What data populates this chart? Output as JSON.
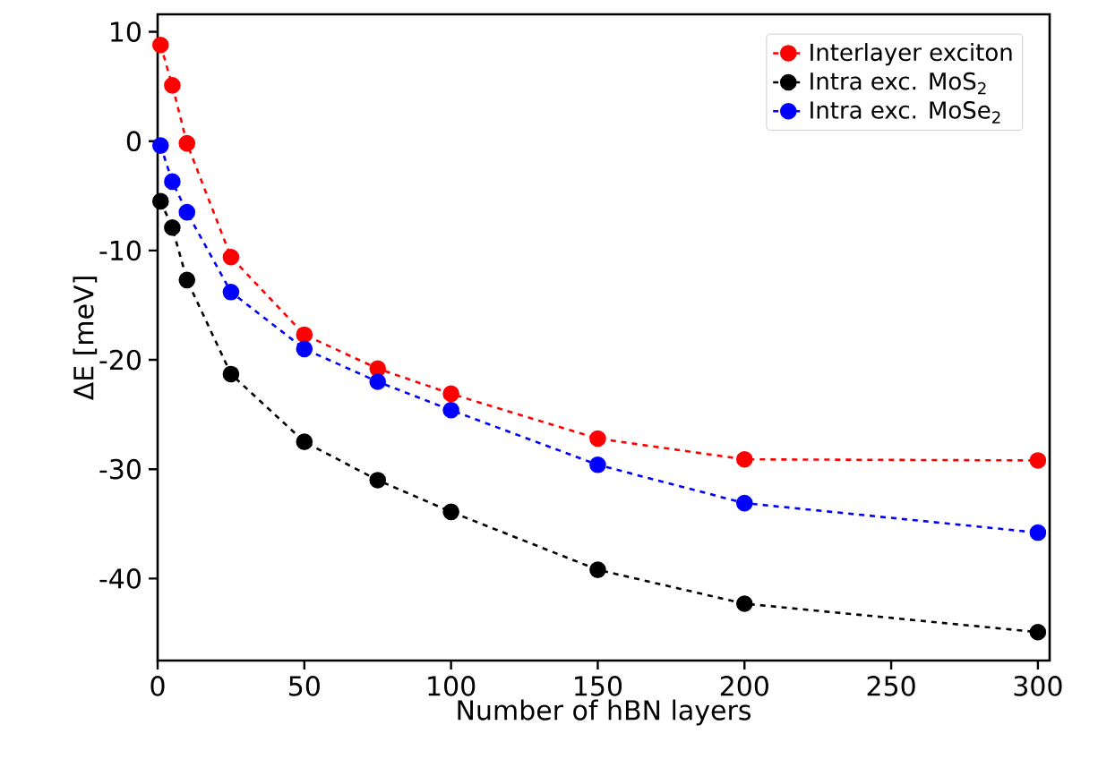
{
  "chart_data": {
    "type": "line",
    "xlabel": "Number of hBN layers",
    "ylabel": "ΔE [meV]",
    "x": [
      1,
      5,
      10,
      25,
      50,
      75,
      100,
      150,
      200,
      300
    ],
    "series": [
      {
        "name": "Interlayer exciton",
        "color": "#ff0000",
        "values": [
          8.8,
          5.1,
          -0.2,
          -10.6,
          -17.7,
          -20.8,
          -23.1,
          -27.2,
          -29.1,
          -29.2
        ]
      },
      {
        "name": "Intra exc. MoS$_{2}$",
        "color": "#000000",
        "values": [
          -5.5,
          -7.9,
          -12.7,
          -21.3,
          -27.5,
          -31.0,
          -33.9,
          -39.2,
          -42.3,
          -44.9
        ]
      },
      {
        "name": "Intra exc. MoSe$_{2}$",
        "color": "#0000ff",
        "values": [
          -0.4,
          -3.7,
          -6.5,
          -13.8,
          -19.0,
          -22.0,
          -24.6,
          -29.6,
          -33.1,
          -35.8
        ]
      }
    ],
    "xlim": [
      0,
      304
    ],
    "ylim": [
      -47.5,
      11.6
    ],
    "xticks": [
      0,
      50,
      100,
      150,
      200,
      250,
      300
    ],
    "yticks": [
      -40,
      -30,
      -20,
      -10,
      0,
      10
    ],
    "marker": "circle",
    "line_style": "dashed",
    "legend": "top right",
    "grid": false
  }
}
